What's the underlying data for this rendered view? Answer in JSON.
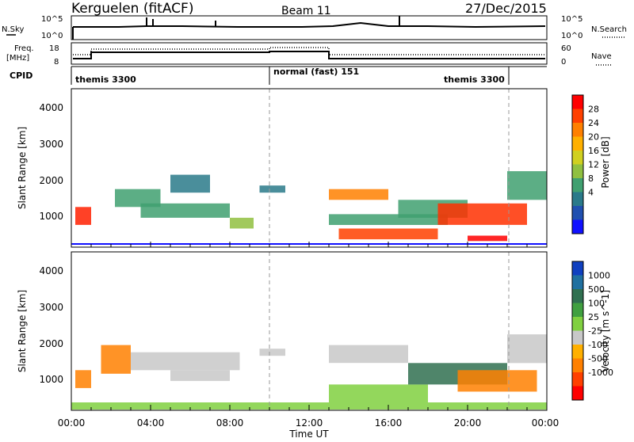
{
  "header": {
    "station": "Kerguelen (fitACF)",
    "beam": "Beam 11",
    "date": "27/Dec/2015"
  },
  "noise_panel": {
    "left_label": "N.Sky",
    "right_label": "N.Search",
    "left_ticks": [
      "10^5",
      "10^0"
    ],
    "right_ticks": [
      "10^5",
      "10^0"
    ]
  },
  "freq_panel": {
    "left_label_1": "Freq.",
    "left_label_2": "[MHz]",
    "right_label": "Nave",
    "left_ticks": [
      "18",
      "8"
    ],
    "right_ticks": [
      "60",
      "0"
    ]
  },
  "cpid_panel": {
    "label": "CPID",
    "segments": [
      "themis 3300",
      "normal (fast) 151",
      "themis 3300"
    ]
  },
  "power_panel": {
    "ylabel": "Slant Range [km]",
    "yticks": [
      "4000",
      "3000",
      "2000",
      "1000"
    ],
    "colorbar_label": "Power [dB]",
    "colorbar_ticks": [
      "28",
      "24",
      "20",
      "16",
      "12",
      "8",
      "4"
    ],
    "colorbar_colors": [
      "#ff0000",
      "#ff4000",
      "#ff8000",
      "#ffb000",
      "#d0d020",
      "#90c040",
      "#40a070",
      "#2a7a8a",
      "#2050b0",
      "#1010ff"
    ]
  },
  "velocity_panel": {
    "ylabel": "Slant Range [km]",
    "yticks": [
      "4000",
      "3000",
      "2000",
      "1000"
    ],
    "colorbar_label": "Velocity [m s^-1]",
    "colorbar_ticks": [
      "1000",
      "500",
      "100",
      "25",
      "-25",
      "-100",
      "-500",
      "-1000"
    ],
    "colorbar_colors": [
      "#1040c0",
      "#2070a0",
      "#307050",
      "#40a040",
      "#80d040",
      "#c8c8c8",
      "#ffb000",
      "#ff8000",
      "#ff4000",
      "#ff0000"
    ]
  },
  "xaxis": {
    "ticks": [
      "00:00",
      "04:00",
      "08:00",
      "12:00",
      "16:00",
      "20:00",
      "00:00"
    ],
    "label": "Time UT"
  },
  "chart_data": {
    "type": "heatmap",
    "x_range_hours": [
      0,
      24
    ],
    "y_range_km": [
      180,
      4600
    ],
    "mode_changes_hours": [
      10,
      22
    ],
    "power_regions": [
      {
        "t0": 0.2,
        "t1": 1.0,
        "r0": 800,
        "r1": 1300,
        "color": "#ff2000"
      },
      {
        "t0": 2.2,
        "t1": 4.5,
        "r0": 1300,
        "r1": 1800,
        "color": "#40a070"
      },
      {
        "t0": 3.5,
        "t1": 8.0,
        "r0": 1000,
        "r1": 1400,
        "color": "#40a070"
      },
      {
        "t0": 5.0,
        "t1": 7.0,
        "r0": 1700,
        "r1": 2200,
        "color": "#2a7a8a"
      },
      {
        "t0": 8.0,
        "t1": 9.2,
        "r0": 700,
        "r1": 1000,
        "color": "#90c040"
      },
      {
        "t0": 9.5,
        "t1": 10.8,
        "r0": 1700,
        "r1": 1900,
        "color": "#2a7a8a"
      },
      {
        "t0": 13.0,
        "t1": 16.0,
        "r0": 1500,
        "r1": 1800,
        "color": "#ff8000"
      },
      {
        "t0": 13.0,
        "t1": 19.0,
        "r0": 800,
        "r1": 1100,
        "color": "#40a070"
      },
      {
        "t0": 13.5,
        "t1": 18.5,
        "r0": 400,
        "r1": 700,
        "color": "#ff4000"
      },
      {
        "t0": 16.5,
        "t1": 20.0,
        "r0": 1000,
        "r1": 1500,
        "color": "#40a070"
      },
      {
        "t0": 18.5,
        "t1": 23.0,
        "r0": 800,
        "r1": 1400,
        "color": "#ff3000"
      },
      {
        "t0": 20.0,
        "t1": 22.0,
        "r0": 350,
        "r1": 500,
        "color": "#ff0000"
      },
      {
        "t0": 22.0,
        "t1": 24.0,
        "r0": 1500,
        "r1": 2300,
        "color": "#40a070"
      }
    ],
    "velocity_regions": [
      {
        "t0": 0.2,
        "t1": 1.0,
        "r0": 800,
        "r1": 1300,
        "color": "#ff8000"
      },
      {
        "t0": 1.5,
        "t1": 3.0,
        "r0": 1200,
        "r1": 2000,
        "color": "#ff8000"
      },
      {
        "t0": 3.0,
        "t1": 8.5,
        "r0": 1300,
        "r1": 1800,
        "color": "#c8c8c8"
      },
      {
        "t0": 5.0,
        "t1": 8.0,
        "r0": 1000,
        "r1": 1300,
        "color": "#c8c8c8"
      },
      {
        "t0": 9.5,
        "t1": 10.8,
        "r0": 1700,
        "r1": 1900,
        "color": "#c8c8c8"
      },
      {
        "t0": 13.0,
        "t1": 17.0,
        "r0": 1500,
        "r1": 2000,
        "color": "#c8c8c8"
      },
      {
        "t0": 13.0,
        "t1": 18.0,
        "r0": 400,
        "r1": 900,
        "color": "#80d040"
      },
      {
        "t0": 17.0,
        "t1": 22.0,
        "r0": 900,
        "r1": 1500,
        "color": "#307050"
      },
      {
        "t0": 19.5,
        "t1": 23.5,
        "r0": 700,
        "r1": 1300,
        "color": "#ff8000"
      },
      {
        "t0": 0.0,
        "t1": 24.0,
        "r0": 200,
        "r1": 400,
        "color": "#80d040"
      },
      {
        "t0": 22.0,
        "t1": 24.0,
        "r0": 1500,
        "r1": 2300,
        "color": "#c8c8c8"
      }
    ]
  }
}
